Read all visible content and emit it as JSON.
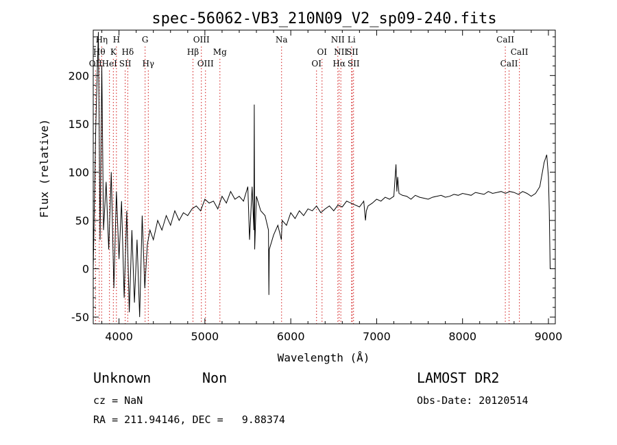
{
  "chart_data": {
    "type": "line",
    "title": "spec-56062-VB3_210N09_V2_sp09-240.fits",
    "xlabel": "Wavelength (Å)",
    "ylabel": "Flux (relative)",
    "xlim": [
      3700,
      9080
    ],
    "ylim": [
      -57,
      247
    ],
    "xticks": [
      4000,
      5000,
      6000,
      7000,
      8000,
      9000
    ],
    "yticks": [
      -50,
      0,
      50,
      100,
      150,
      200
    ],
    "grid": false,
    "series": [
      {
        "x": [
          3700,
          3730,
          3760,
          3780,
          3800,
          3820,
          3850,
          3880,
          3910,
          3940,
          3970,
          4000,
          4030,
          4060,
          4090,
          4120,
          4150,
          4180,
          4210,
          4240,
          4270,
          4300,
          4330,
          4360,
          4400,
          4450,
          4500,
          4550,
          4600,
          4650,
          4700,
          4750,
          4800,
          4850,
          4900,
          4950,
          5000,
          5050,
          5100,
          5150,
          5200,
          5250,
          5300,
          5350,
          5400,
          5450,
          5500,
          5520,
          5550,
          5570,
          5575,
          5580,
          5600,
          5650,
          5700,
          5740,
          5745,
          5750,
          5800,
          5850,
          5890,
          5900,
          5950,
          6000,
          6050,
          6100,
          6150,
          6200,
          6250,
          6300,
          6350,
          6400,
          6450,
          6500,
          6550,
          6600,
          6650,
          6700,
          6750,
          6800,
          6850,
          6870,
          6880,
          6900,
          6950,
          7000,
          7050,
          7100,
          7150,
          7200,
          7225,
          7235,
          7245,
          7260,
          7300,
          7350,
          7400,
          7450,
          7500,
          7550,
          7600,
          7650,
          7700,
          7750,
          7800,
          7850,
          7900,
          7950,
          8000,
          8050,
          8100,
          8150,
          8200,
          8250,
          8300,
          8350,
          8400,
          8450,
          8500,
          8550,
          8600,
          8650,
          8700,
          8750,
          8800,
          8850,
          8900,
          8950,
          8980,
          9000,
          9010,
          9020
        ],
        "values": [
          0,
          150,
          245,
          30,
          210,
          40,
          90,
          20,
          100,
          -20,
          80,
          10,
          70,
          -30,
          60,
          -45,
          40,
          -35,
          30,
          -50,
          55,
          -20,
          25,
          40,
          30,
          50,
          40,
          55,
          45,
          60,
          50,
          58,
          55,
          62,
          65,
          60,
          72,
          68,
          70,
          62,
          75,
          68,
          80,
          72,
          75,
          70,
          85,
          30,
          85,
          40,
          170,
          20,
          75,
          60,
          55,
          40,
          -27,
          20,
          35,
          45,
          30,
          50,
          45,
          58,
          52,
          60,
          55,
          62,
          60,
          65,
          58,
          62,
          65,
          60,
          66,
          64,
          70,
          68,
          66,
          64,
          70,
          50,
          60,
          65,
          68,
          72,
          70,
          74,
          72,
          75,
          108,
          80,
          95,
          78,
          76,
          75,
          72,
          76,
          74,
          73,
          72,
          74,
          75,
          76,
          74,
          75,
          77,
          76,
          78,
          77,
          76,
          79,
          78,
          77,
          80,
          78,
          79,
          80,
          78,
          80,
          79,
          77,
          80,
          78,
          75,
          78,
          85,
          110,
          118,
          95,
          60,
          0
        ]
      }
    ],
    "lines": [
      {
        "wl": 3727,
        "label": "OII",
        "row": 2
      },
      {
        "wl": 3770,
        "label": "Hθ",
        "row": 1
      },
      {
        "wl": 3798,
        "label": "Hη",
        "row": 0
      },
      {
        "wl": 3889,
        "label": "HeI",
        "row": 2
      },
      {
        "wl": 3934,
        "label": "K",
        "row": 1
      },
      {
        "wl": 3970,
        "label": "H",
        "row": 0
      },
      {
        "wl": 4072,
        "label": "SII",
        "row": 2
      },
      {
        "wl": 4102,
        "label": "Hδ",
        "row": 1
      },
      {
        "wl": 4304,
        "label": "G",
        "row": 0
      },
      {
        "wl": 4341,
        "label": "Hγ",
        "row": 2
      },
      {
        "wl": 4861,
        "label": "Hβ",
        "row": 1
      },
      {
        "wl": 4959,
        "label": "OIII",
        "row": 0
      },
      {
        "wl": 5007,
        "label": "OIII",
        "row": 2
      },
      {
        "wl": 5175,
        "label": "Mg",
        "row": 1
      },
      {
        "wl": 5893,
        "label": "Na",
        "row": 0
      },
      {
        "wl": 6300,
        "label": "OI",
        "row": 2
      },
      {
        "wl": 6364,
        "label": "OI",
        "row": 1
      },
      {
        "wl": 6548,
        "label": "NII",
        "row": 0
      },
      {
        "wl": 6563,
        "label": "Hα",
        "row": 2
      },
      {
        "wl": 6583,
        "label": "NII",
        "row": 1
      },
      {
        "wl": 6708,
        "label": "Li",
        "row": 0
      },
      {
        "wl": 6716,
        "label": "SII",
        "row": 1
      },
      {
        "wl": 6731,
        "label": "SII",
        "row": 2
      },
      {
        "wl": 8498,
        "label": "CaII",
        "row": 0
      },
      {
        "wl": 8542,
        "label": "CaII",
        "row": 2
      },
      {
        "wl": 8662,
        "label": "CaII",
        "row": 1
      }
    ]
  },
  "info": {
    "class_label": "Unknown",
    "subclass_label": "Non",
    "survey": "LAMOST DR2",
    "cz": "cz = NaN",
    "obs_date": "Obs-Date: 20120514",
    "radec": "RA = 211.94146, DEC =   9.88374"
  },
  "colors": {
    "line_marker": "#d01010",
    "axis": "#000000",
    "spectrum": "#000000"
  }
}
